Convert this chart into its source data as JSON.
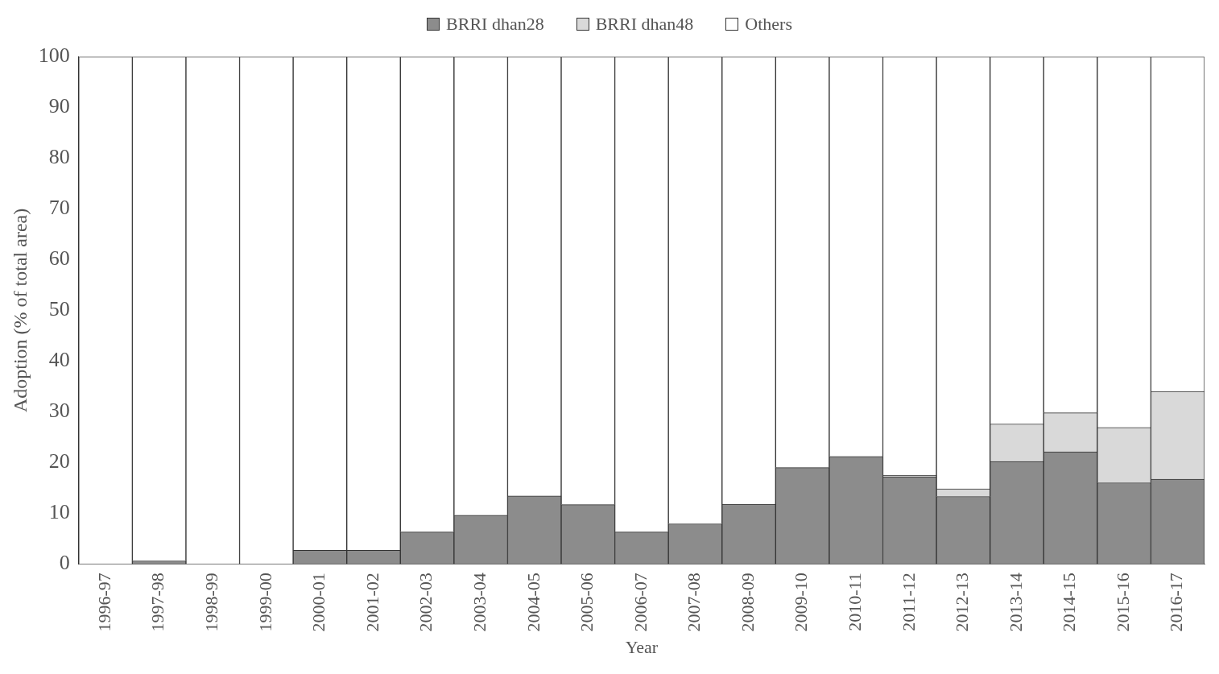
{
  "chart_data": {
    "type": "bar",
    "stacked": true,
    "xlabel": "Year",
    "ylabel": "Adoption (% of total area)",
    "categories": [
      "1996-97",
      "1997-98",
      "1998-99",
      "1999-00",
      "2000-01",
      "2001-02",
      "2002-03",
      "2003-04",
      "2004-05",
      "2005-06",
      "2006-07",
      "2007-08",
      "2008-09",
      "2009-10",
      "2010-11",
      "2011-12",
      "2012-13",
      "2013-14",
      "2014-15",
      "2015-16",
      "2016-17"
    ],
    "series": [
      {
        "name": "BRRI dhan28",
        "color": "#8c8c8c",
        "values": [
          0,
          0.6,
          0,
          0,
          2.7,
          2.7,
          6.3,
          9.6,
          13.4,
          11.7,
          6.3,
          7.9,
          11.8,
          19.0,
          21.2,
          17.2,
          13.3,
          20.2,
          22.1,
          16.0,
          16.7
        ]
      },
      {
        "name": "BRRI dhan48",
        "color": "#d9d9d9",
        "values": [
          0,
          0,
          0,
          0,
          0,
          0,
          0,
          0,
          0,
          0,
          0,
          0,
          0,
          0,
          0,
          0.3,
          1.5,
          7.4,
          7.7,
          10.9,
          17.3
        ]
      },
      {
        "name": "Others",
        "color": "#ffffff",
        "values": [
          100,
          99.4,
          100,
          100,
          97.3,
          97.3,
          93.7,
          90.4,
          86.6,
          88.3,
          93.7,
          92.1,
          88.2,
          81.0,
          78.8,
          82.5,
          85.2,
          72.4,
          70.2,
          73.1,
          66.0
        ]
      }
    ],
    "ylim": [
      0,
      100
    ],
    "yticks": [
      0,
      10,
      20,
      30,
      40,
      50,
      60,
      70,
      80,
      90,
      100
    ],
    "grid": false,
    "legend": "top"
  }
}
